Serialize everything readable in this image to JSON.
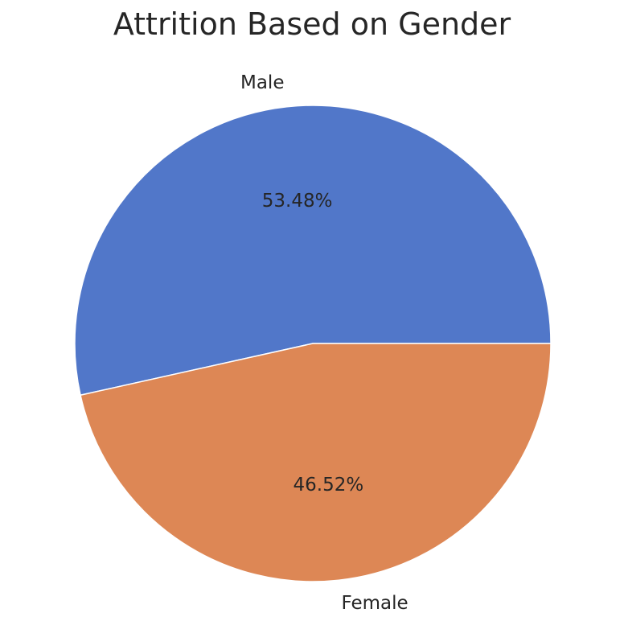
{
  "chart_data": {
    "type": "pie",
    "title": "Attrition Based on Gender",
    "categories": [
      "Male",
      "Female"
    ],
    "values": [
      53.48,
      46.52
    ],
    "value_labels": [
      "53.48%",
      "46.52%"
    ],
    "colors": [
      "#5177c9",
      "#dd8755"
    ],
    "start_angle_deg": 0,
    "direction": "counterclockwise"
  }
}
